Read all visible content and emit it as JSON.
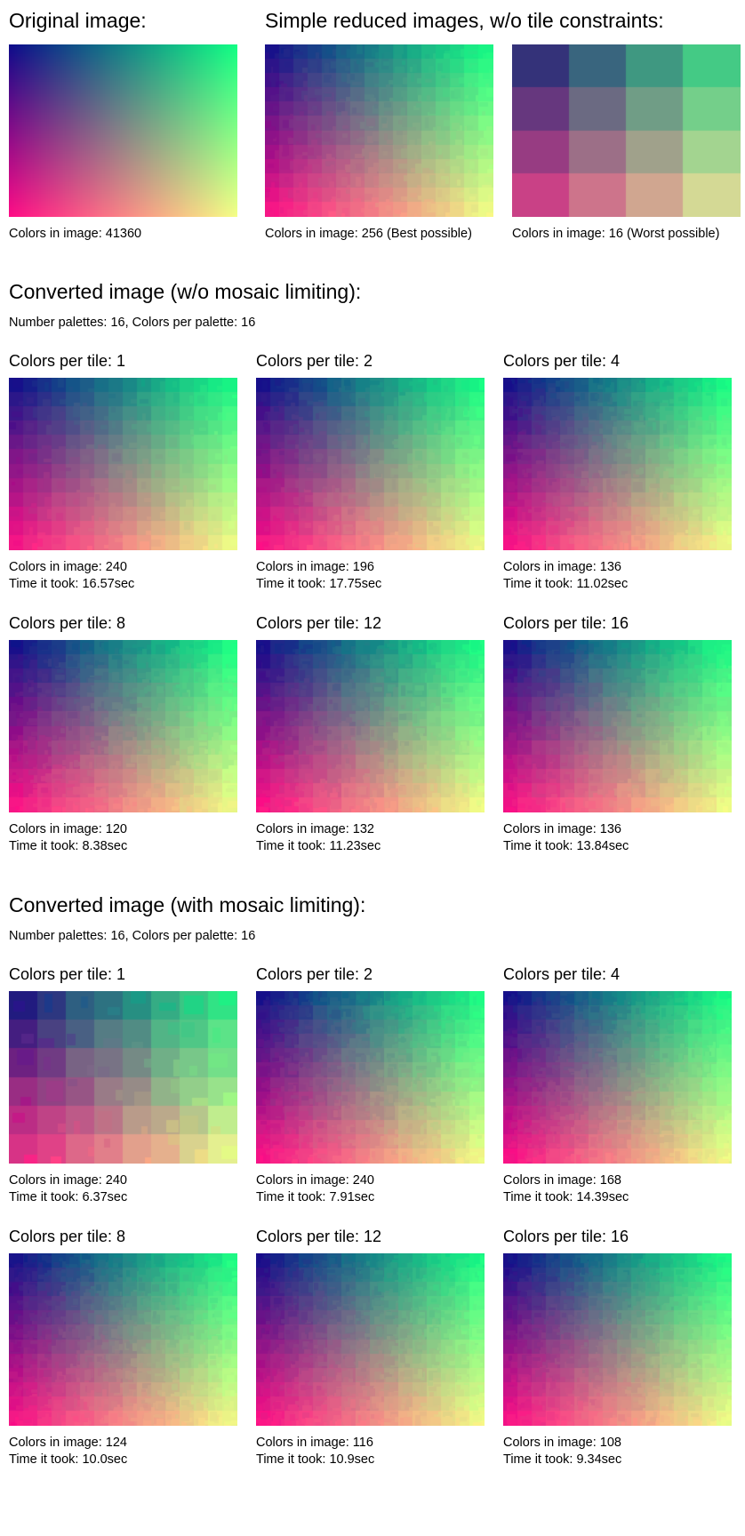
{
  "original": {
    "title": "Original image:",
    "caption": "Colors in image: 41360"
  },
  "simple": {
    "title": "Simple reduced images, w/o tile constraints:",
    "best_caption": "Colors in image: 256 (Best possible)",
    "worst_caption": "Colors in image: 16 (Worst possible)"
  },
  "sections": [
    {
      "title": "Converted image (w/o mosaic limiting):",
      "subtitle": "Number palettes: 16,  Colors per palette: 16",
      "results": [
        {
          "label": "Colors per tile: 1",
          "colors": "Colors in image: 240",
          "time": "Time it took: 16.57sec"
        },
        {
          "label": "Colors per tile: 2",
          "colors": "Colors in image: 196",
          "time": "Time it took: 17.75sec"
        },
        {
          "label": "Colors per tile: 4",
          "colors": "Colors in image: 136",
          "time": "Time it took: 11.02sec"
        },
        {
          "label": "Colors per tile: 8",
          "colors": "Colors in image: 120",
          "time": "Time it took: 8.38sec"
        },
        {
          "label": "Colors per tile: 12",
          "colors": "Colors in image: 132",
          "time": "Time it took: 11.23sec"
        },
        {
          "label": "Colors per tile: 16",
          "colors": "Colors in image: 136",
          "time": "Time it took: 13.84sec"
        }
      ]
    },
    {
      "title": "Converted image (with mosaic limiting):",
      "subtitle": "Number palettes: 16,  Colors per palette: 16",
      "results": [
        {
          "label": "Colors per tile: 1",
          "colors": "Colors in image: 240",
          "time": "Time it took: 6.37sec"
        },
        {
          "label": "Colors per tile: 2",
          "colors": "Colors in image: 240",
          "time": "Time it took: 7.91sec"
        },
        {
          "label": "Colors per tile: 4",
          "colors": "Colors in image: 168",
          "time": "Time it took: 14.39sec"
        },
        {
          "label": "Colors per tile: 8",
          "colors": "Colors in image: 124",
          "time": "Time it took: 10.0sec"
        },
        {
          "label": "Colors per tile: 12",
          "colors": "Colors in image: 116",
          "time": "Time it took: 10.9sec"
        },
        {
          "label": "Colors per tile: 16",
          "colors": "Colors in image: 108",
          "time": "Time it took: 9.34sec"
        }
      ]
    }
  ],
  "colors": {
    "top_left": "#0e0b8a",
    "top_right": "#12ff84",
    "bottom_left": "#ff0c86",
    "bottom_right": "#f5ff86"
  }
}
